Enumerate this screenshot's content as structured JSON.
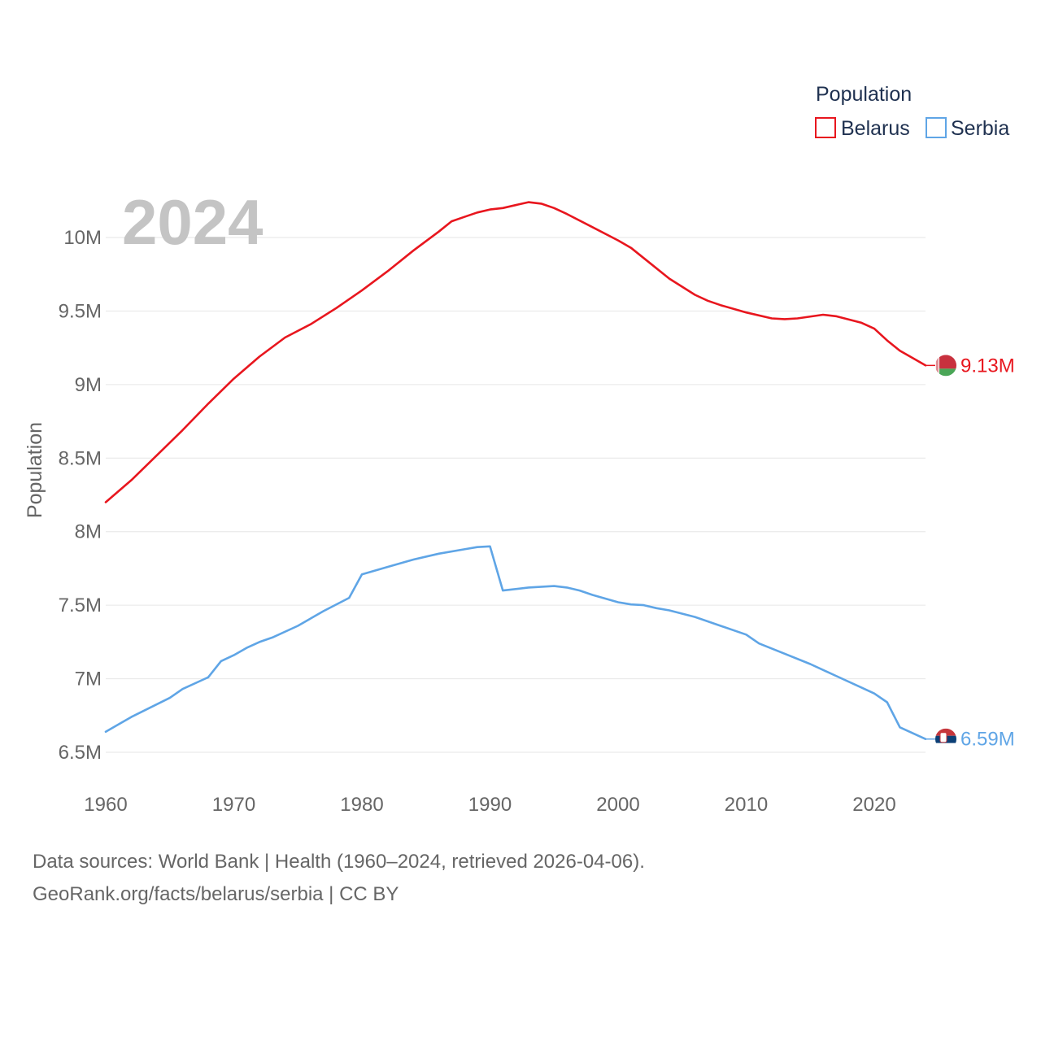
{
  "chart_data": {
    "type": "line",
    "title": "Population",
    "year_label": "2024",
    "ylabel": "Population",
    "xlabel": "",
    "xlim": [
      1960,
      2024
    ],
    "ylim": [
      6.5,
      10.0
    ],
    "x_ticks": [
      {
        "value": 1960,
        "label": "1960"
      },
      {
        "value": 1970,
        "label": "1970"
      },
      {
        "value": 1980,
        "label": "1980"
      },
      {
        "value": 1990,
        "label": "1990"
      },
      {
        "value": 2000,
        "label": "2000"
      },
      {
        "value": 2010,
        "label": "2010"
      },
      {
        "value": 2020,
        "label": "2020"
      }
    ],
    "y_ticks": [
      {
        "value": 10.0,
        "label": "10M"
      },
      {
        "value": 9.5,
        "label": "9.5M"
      },
      {
        "value": 9.0,
        "label": "9M"
      },
      {
        "value": 8.5,
        "label": "8.5M"
      },
      {
        "value": 8.0,
        "label": "8M"
      },
      {
        "value": 7.5,
        "label": "7.5M"
      },
      {
        "value": 7.0,
        "label": "7M"
      },
      {
        "value": 6.5,
        "label": "6.5M"
      }
    ],
    "legend_position": "top-right",
    "series": [
      {
        "name": "Belarus",
        "color": "#e8161e",
        "end_label": "9.13M",
        "flag": "belarus-flag-icon",
        "points": [
          [
            1960,
            8.2
          ],
          [
            1962,
            8.35
          ],
          [
            1964,
            8.52
          ],
          [
            1966,
            8.69
          ],
          [
            1968,
            8.87
          ],
          [
            1970,
            9.04
          ],
          [
            1972,
            9.19
          ],
          [
            1974,
            9.32
          ],
          [
            1976,
            9.41
          ],
          [
            1978,
            9.52
          ],
          [
            1980,
            9.64
          ],
          [
            1982,
            9.77
          ],
          [
            1984,
            9.91
          ],
          [
            1986,
            10.04
          ],
          [
            1987,
            10.11
          ],
          [
            1988,
            10.14
          ],
          [
            1989,
            10.17
          ],
          [
            1990,
            10.19
          ],
          [
            1991,
            10.2
          ],
          [
            1992,
            10.22
          ],
          [
            1993,
            10.24
          ],
          [
            1994,
            10.23
          ],
          [
            1995,
            10.2
          ],
          [
            1996,
            10.16
          ],
          [
            1998,
            10.07
          ],
          [
            2000,
            9.98
          ],
          [
            2001,
            9.93
          ],
          [
            2002,
            9.86
          ],
          [
            2004,
            9.72
          ],
          [
            2006,
            9.61
          ],
          [
            2007,
            9.57
          ],
          [
            2008,
            9.54
          ],
          [
            2010,
            9.49
          ],
          [
            2012,
            9.45
          ],
          [
            2013,
            9.445
          ],
          [
            2014,
            9.45
          ],
          [
            2016,
            9.475
          ],
          [
            2017,
            9.465
          ],
          [
            2019,
            9.42
          ],
          [
            2020,
            9.38
          ],
          [
            2021,
            9.3
          ],
          [
            2022,
            9.23
          ],
          [
            2023,
            9.18
          ],
          [
            2024,
            9.13
          ]
        ]
      },
      {
        "name": "Serbia",
        "color": "#5fa5e6",
        "end_label": "6.59M",
        "flag": "serbia-flag-icon",
        "points": [
          [
            1960,
            6.64
          ],
          [
            1962,
            6.74
          ],
          [
            1965,
            6.87
          ],
          [
            1966,
            6.93
          ],
          [
            1968,
            7.01
          ],
          [
            1969,
            7.12
          ],
          [
            1970,
            7.16
          ],
          [
            1971,
            7.21
          ],
          [
            1972,
            7.25
          ],
          [
            1973,
            7.28
          ],
          [
            1975,
            7.36
          ],
          [
            1977,
            7.46
          ],
          [
            1979,
            7.55
          ],
          [
            1980,
            7.71
          ],
          [
            1982,
            7.76
          ],
          [
            1984,
            7.81
          ],
          [
            1986,
            7.85
          ],
          [
            1988,
            7.88
          ],
          [
            1989,
            7.895
          ],
          [
            1990,
            7.9
          ],
          [
            1991,
            7.6
          ],
          [
            1993,
            7.62
          ],
          [
            1995,
            7.63
          ],
          [
            1996,
            7.62
          ],
          [
            1997,
            7.6
          ],
          [
            1998,
            7.57
          ],
          [
            2000,
            7.52
          ],
          [
            2001,
            7.505
          ],
          [
            2002,
            7.5
          ],
          [
            2003,
            7.48
          ],
          [
            2004,
            7.465
          ],
          [
            2006,
            7.42
          ],
          [
            2008,
            7.36
          ],
          [
            2010,
            7.3
          ],
          [
            2011,
            7.24
          ],
          [
            2013,
            7.17
          ],
          [
            2015,
            7.1
          ],
          [
            2017,
            7.02
          ],
          [
            2019,
            6.94
          ],
          [
            2020,
            6.9
          ],
          [
            2021,
            6.84
          ],
          [
            2022,
            6.67
          ],
          [
            2024,
            6.59
          ]
        ]
      }
    ]
  },
  "legend": {
    "title": "Population",
    "items": [
      {
        "label": "Belarus",
        "color": "#e8161e"
      },
      {
        "label": "Serbia",
        "color": "#5fa5e6"
      }
    ]
  },
  "footer": {
    "line1": "Data sources: World Bank | Health (1960–2024, retrieved 2026-04-06).",
    "line2": "GeoRank.org/facts/belarus/serbia | CC BY"
  }
}
